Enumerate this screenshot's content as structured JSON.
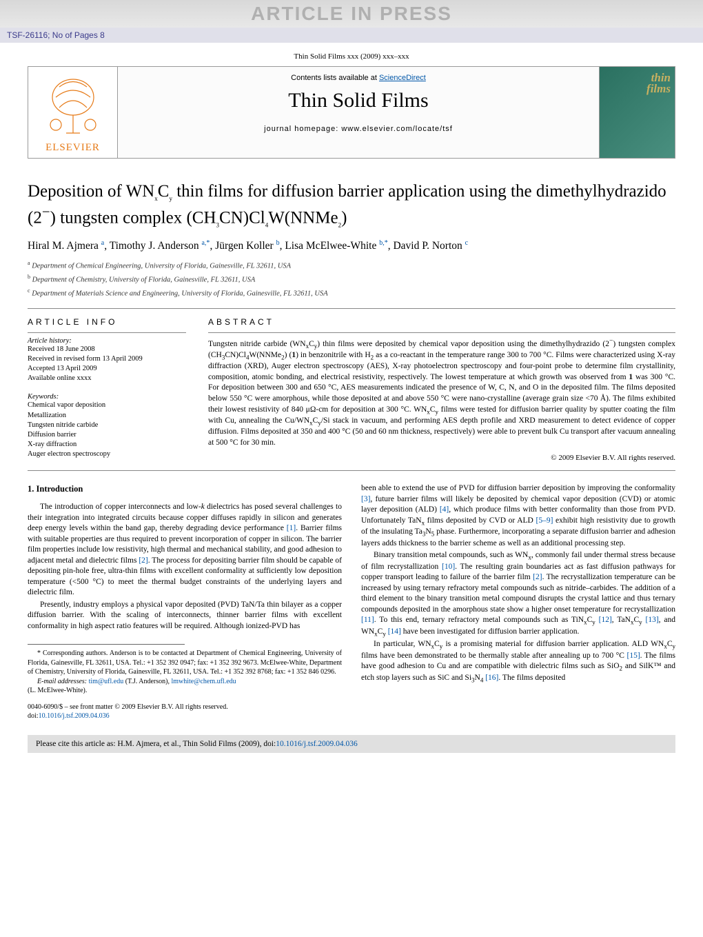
{
  "watermark": "ARTICLE IN PRESS",
  "model_ref": "TSF-26116; No of Pages 8",
  "journal_ref": "Thin Solid Films xxx (2009) xxx–xxx",
  "elsevier": "ELSEVIER",
  "contents_prefix": "Contents lists available at ",
  "contents_link": "ScienceDirect",
  "journal_title": "Thin Solid Films",
  "homepage": "journal homepage: www.elsevier.com/locate/tsf",
  "cover_l1": "thin",
  "cover_l2": "films",
  "title_html": "Deposition of WN<sub>x</sub>C<sub>y</sub> thin films for diffusion barrier application using the dimethylhydrazido (2<sup>−</sup>) tungsten complex (CH<sub>3</sub>CN)Cl<sub>4</sub>W(NNMe<sub>2</sub>)",
  "authors_html": "Hiral M. Ajmera <span class='sup'>a</span>, Timothy J. Anderson <span class='sup'>a,*</span>, Jürgen Koller <span class='sup'>b</span>, Lisa McElwee-White <span class='sup'>b,*</span>, David P. Norton <span class='sup'>c</span>",
  "affiliations": [
    {
      "s": "a",
      "t": "Department of Chemical Engineering, University of Florida, Gainesville, FL 32611, USA"
    },
    {
      "s": "b",
      "t": "Department of Chemistry, University of Florida, Gainesville, FL 32611, USA"
    },
    {
      "s": "c",
      "t": "Department of Materials Science and Engineering, University of Florida, Gainesville, FL 32611, USA"
    }
  ],
  "info_head": "ARTICLE INFO",
  "history_head": "Article history:",
  "history": [
    "Received 18 June 2008",
    "Received in revised form 13 April 2009",
    "Accepted 13 April 2009",
    "Available online xxxx"
  ],
  "kw_head": "Keywords:",
  "keywords": [
    "Chemical vapor deposition",
    "Metallization",
    "Tungsten nitride carbide",
    "Diffusion barrier",
    "X-ray diffraction",
    "Auger electron spectroscopy"
  ],
  "abs_head": "ABSTRACT",
  "abstract_html": "Tungsten nitride carbide (WN<sub>x</sub>C<sub>y</sub>) thin films were deposited by chemical vapor deposition using the dimethylhydrazido (2<sup>−</sup>) tungsten complex (CH<sub>3</sub>CN)Cl<sub>4</sub>W(NNMe<sub>2</sub>) (<b>1</b>) in benzonitrile with H<sub>2</sub> as a co-reactant in the temperature range 300 to 700 °C. Films were characterized using X-ray diffraction (XRD), Auger electron spectroscopy (AES), X-ray photoelectron spectroscopy and four-point probe to determine film crystallinity, composition, atomic bonding, and electrical resistivity, respectively. The lowest temperature at which growth was observed from <b>1</b> was 300 °C. For deposition between 300 and 650 °C, AES measurements indicated the presence of W, C, N, and O in the deposited film. The films deposited below 550 °C were amorphous, while those deposited at and above 550 °C were nano-crystalline (average grain size &lt;70 Å). The films exhibited their lowest resistivity of 840 μΩ-cm for deposition at 300 °C. WN<sub>x</sub>C<sub>y</sub> films were tested for diffusion barrier quality by sputter coating the film with Cu, annealing the Cu/WN<sub>x</sub>C<sub>y</sub>/Si stack in vacuum, and performing AES depth profile and XRD measurement to detect evidence of copper diffusion. Films deposited at 350 and 400 °C (50 and 60 nm thickness, respectively) were able to prevent bulk Cu transport after vacuum annealing at 500 °C for 30 min.",
  "copyright": "© 2009 Elsevier B.V. All rights reserved.",
  "section1": "1. Introduction",
  "col1_p1_html": "The introduction of copper interconnects and low-<i>k</i> dielectrics has posed several challenges to their integration into integrated circuits because copper diffuses rapidly in silicon and generates deep energy levels within the band gap, thereby degrading device performance <span class='lk'>[1]</span>. Barrier films with suitable properties are thus required to prevent incorporation of copper in silicon. The barrier film properties include low resistivity, high thermal and mechanical stability, and good adhesion to adjacent metal and dielectric films <span class='lk'>[2]</span>. The process for depositing barrier film should be capable of depositing pin-hole free, ultra-thin films with excellent conformality at sufficiently low deposition temperature (&lt;500 °C) to meet the thermal budget constraints of the underlying layers and dielectric film.",
  "col1_p2_html": "Presently, industry employs a physical vapor deposited (PVD) TaN/Ta thin bilayer as a copper diffusion barrier. With the scaling of interconnects, thinner barrier films with excellent conformality in high aspect ratio features will be required. Although ionized-PVD has",
  "col2_p1_html": "been able to extend the use of PVD for diffusion barrier deposition by improving the conformality <span class='lk'>[3]</span>, future barrier films will likely be deposited by chemical vapor deposition (CVD) or atomic layer deposition (ALD) <span class='lk'>[4]</span>, which produce films with better conformality than those from PVD. Unfortunately TaN<sub>x</sub> films deposited by CVD or ALD <span class='lk'>[5–9]</span> exhibit high resistivity due to growth of the insulating Ta<sub>3</sub>N<sub>5</sub> phase. Furthermore, incorporating a separate diffusion barrier and adhesion layers adds thickness to the barrier scheme as well as an additional processing step.",
  "col2_p2_html": "Binary transition metal compounds, such as WN<sub>x</sub>, commonly fail under thermal stress because of film recrystallization <span class='lk'>[10]</span>. The resulting grain boundaries act as fast diffusion pathways for copper transport leading to failure of the barrier film <span class='lk'>[2]</span>. The recrystallization temperature can be increased by using ternary refractory metal compounds such as nitride–carbides. The addition of a third element to the binary transition metal compound disrupts the crystal lattice and thus ternary compounds deposited in the amorphous state show a higher onset temperature for recrystallization <span class='lk'>[11]</span>. To this end, ternary refractory metal compounds such as TiN<sub>x</sub>C<sub>y</sub> <span class='lk'>[12]</span>, TaN<sub>x</sub>C<sub>y</sub> <span class='lk'>[13]</span>, and WN<sub>x</sub>C<sub>y</sub> <span class='lk'>[14]</span> have been investigated for diffusion barrier application.",
  "col2_p3_html": "In particular, WN<sub>x</sub>C<sub>y</sub> is a promising material for diffusion barrier application. ALD WN<sub>x</sub>C<sub>y</sub> films have been demonstrated to be thermally stable after annealing up to 700 °C <span class='lk'>[15]</span>. The films have good adhesion to Cu and are compatible with dielectric films such as SiO<sub>2</sub> and SilK™ and etch stop layers such as SiC and Si<sub>3</sub>N<sub>4</sub> <span class='lk'>[16]</span>. The films deposited",
  "corr_html": "* Corresponding authors. Anderson is to be contacted at Department of Chemical Engineering, University of Florida, Gainesville, FL 32611, USA. Tel.: +1 352 392 0947; fax: +1 352 392 9673. McElwee-White, Department of Chemistry, University of Florida, Gainesville, FL 32611, USA. Tel.: +1 352 392 8768; fax: +1 352 846 0296.",
  "email_label": "E-mail addresses: ",
  "email1": "tim@ufl.edu",
  "email1_who": " (T.J. Anderson), ",
  "email2": "lmwhite@chem.ufl.edu",
  "email2_who": "(L. McElwee-White).",
  "doi_line1": "0040-6090/$ – see front matter © 2009 Elsevier B.V. All rights reserved.",
  "doi_label": "doi:",
  "doi_link": "10.1016/j.tsf.2009.04.036",
  "cite_prefix": "Please cite this article as: H.M. Ajmera, et al., Thin Solid Films (2009), doi:",
  "cite_link": "10.1016/j.tsf.2009.04.036",
  "colors": {
    "link": "#0056a8",
    "elsevier_orange": "#e67a17",
    "header_bg": "#e0e0ea",
    "cite_bg": "#e0e0e0"
  }
}
